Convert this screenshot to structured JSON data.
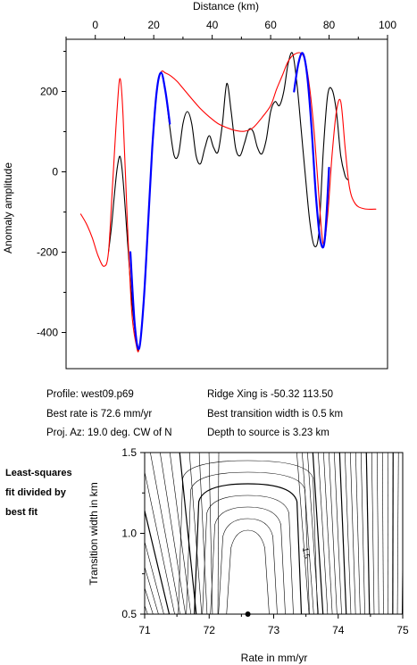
{
  "chart_data": [
    {
      "type": "line",
      "top_axis_label": "Distance (km)",
      "ylabel": "Anomaly amplitude",
      "xlim": [
        -10,
        100
      ],
      "ylim": [
        -490,
        330
      ],
      "x_ticks": [
        0,
        20,
        40,
        60,
        80,
        100
      ],
      "y_ticks": [
        -400,
        -200,
        0,
        200
      ],
      "series": [
        {
          "color": "#000000",
          "x": [
            4.5,
            5.5,
            6.5,
            7.5,
            8.5,
            9.5,
            11,
            12.5,
            14,
            15,
            16.5,
            18,
            19.5,
            21,
            22.5,
            24,
            25.5,
            27,
            28.5,
            30,
            31.5,
            33,
            34.5,
            36,
            37.5,
            39,
            40.5,
            42,
            43.5,
            45,
            46.5,
            48,
            49.5,
            51,
            52.5,
            54,
            55.5,
            57,
            58.5,
            60,
            61.5,
            63,
            64.5,
            66,
            67.5,
            69,
            70.5,
            72,
            73.5,
            75,
            76.5,
            78,
            79.5,
            81,
            82.5,
            84,
            85.5,
            86.5
          ],
          "y": [
            -200,
            -140,
            -60,
            10,
            38,
            -20,
            -170,
            -320,
            -420,
            -440,
            -330,
            -140,
            60,
            200,
            247,
            200,
            110,
            40,
            45,
            120,
            150,
            120,
            40,
            20,
            60,
            90,
            60,
            50,
            120,
            220,
            150,
            60,
            40,
            70,
            105,
            100,
            60,
            45,
            80,
            150,
            175,
            165,
            200,
            270,
            295,
            220,
            100,
            -20,
            -130,
            -185,
            -150,
            50,
            190,
            205,
            150,
            40,
            -10,
            -20
          ]
        },
        {
          "color": "#ff0000",
          "x": [
            -5,
            -3,
            -1,
            1,
            3,
            4.5,
            6,
            7.5,
            8.5,
            9.5,
            11,
            12.5,
            14,
            15,
            16.5,
            18,
            19.5,
            21,
            22.5,
            24,
            26,
            28,
            30,
            33,
            36,
            39,
            42,
            45,
            48,
            51,
            54,
            57,
            60,
            62,
            64,
            66,
            68,
            70.5,
            72,
            73.5,
            75,
            76.5,
            78,
            79.5,
            81,
            82.5,
            84,
            85.5,
            87,
            89,
            92,
            96
          ],
          "y": [
            -105,
            -130,
            -165,
            -210,
            -235,
            -200,
            -20,
            160,
            232,
            140,
            -130,
            -350,
            -430,
            -440,
            -330,
            -140,
            60,
            200,
            248,
            246,
            238,
            225,
            208,
            182,
            157,
            137,
            120,
            110,
            103,
            101,
            110,
            135,
            165,
            205,
            240,
            275,
            292,
            295,
            270,
            200,
            90,
            -60,
            -180,
            -110,
            40,
            150,
            175,
            60,
            -40,
            -80,
            -92,
            -93
          ]
        },
        {
          "color": "#0000ff",
          "x": [
            12,
            13.5,
            15,
            16.5,
            18,
            19.5,
            21,
            22.5,
            24,
            25.5
          ],
          "y": [
            -200,
            -380,
            -440,
            -330,
            -140,
            60,
            200,
            247,
            200,
            120
          ]
        },
        {
          "color": "#0000ff",
          "x": [
            68,
            69.5,
            71,
            72.5,
            74,
            75.5,
            77,
            78.5,
            80
          ],
          "y": [
            200,
            270,
            295,
            240,
            110,
            -60,
            -170,
            -170,
            10
          ]
        }
      ]
    },
    {
      "type": "contour",
      "xlabel": "Rate in mm/yr",
      "ylabel": "Transition width in km",
      "xlim": [
        71,
        75
      ],
      "ylim": [
        0.5,
        1.5
      ],
      "x_ticks": [
        71,
        72,
        73,
        74,
        75
      ],
      "y_ticks": [
        0.5,
        1.0,
        1.5
      ],
      "contour_labels": [
        "1.5"
      ],
      "best_fit": {
        "rate": 72.6,
        "width": 0.5
      }
    }
  ],
  "tick_labels": {
    "top_x": [
      "0",
      "20",
      "40",
      "60",
      "80",
      "100"
    ],
    "left_y": [
      "-400",
      "-200",
      "0",
      "200"
    ],
    "bottom_x": [
      "71",
      "72",
      "73",
      "74",
      "75"
    ],
    "left_y2": [
      "0.5",
      "1.0",
      "1.5"
    ]
  },
  "info": {
    "profile": "Profile: west09.p69",
    "best_rate": "Best rate is 72.6 mm/yr",
    "proj_az": "Proj. Az: 19.0 deg. CW of N",
    "ridge": "Ridge Xing is -50.32 113.50",
    "transition": "Best transition width is 0.5 km",
    "depth": "Depth to source is   3.23 km"
  },
  "side_note": [
    "Least-squares",
    "fit divided by",
    "best fit"
  ]
}
